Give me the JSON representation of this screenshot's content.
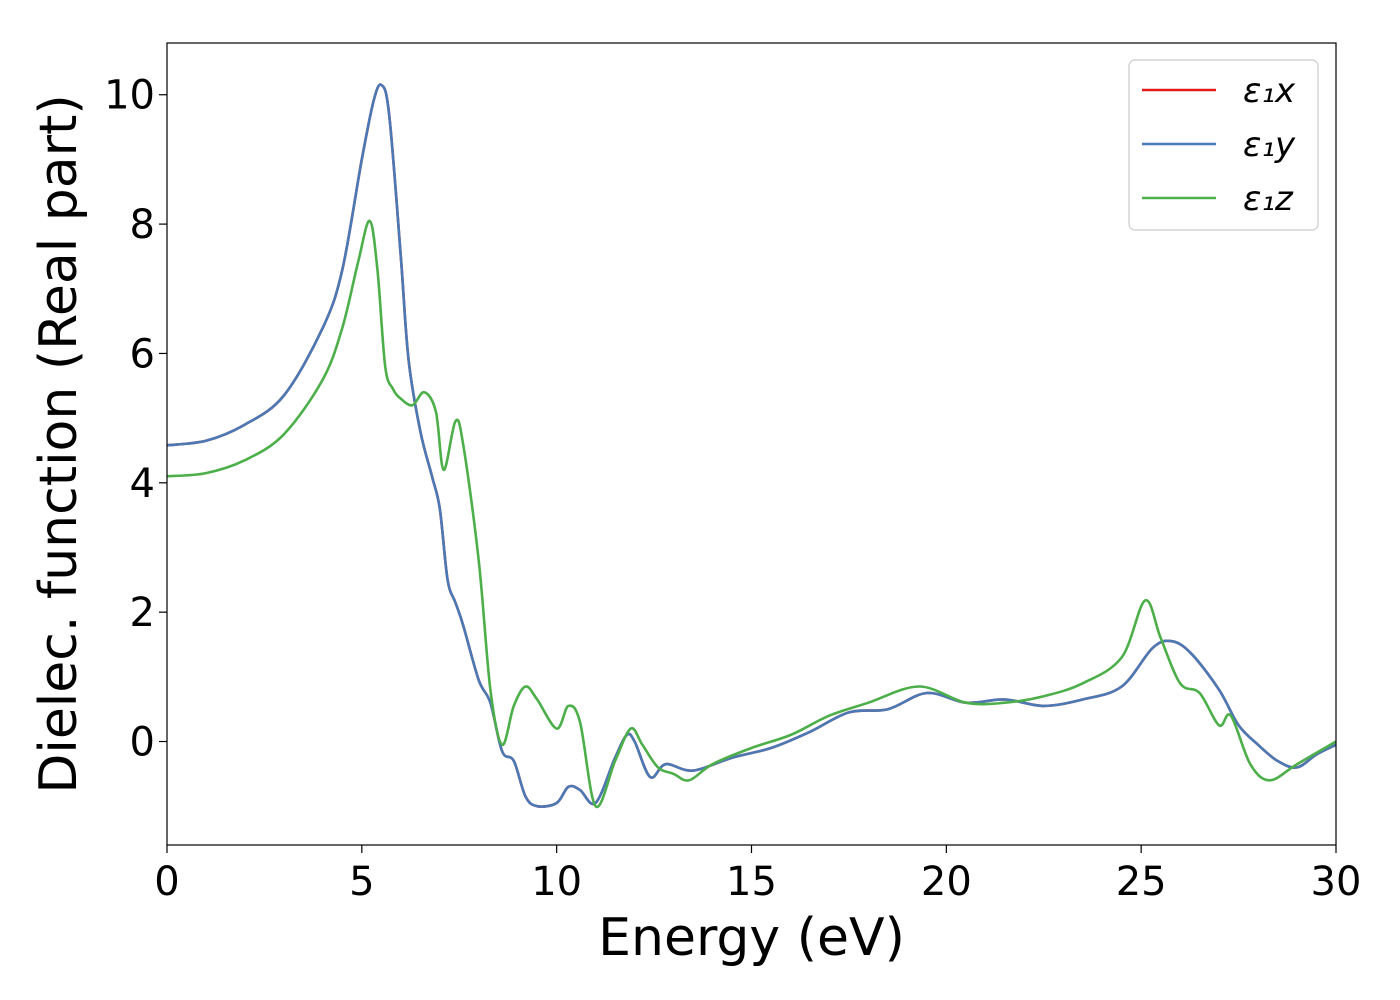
{
  "chart_data": {
    "type": "line",
    "xlabel": "Energy (eV)",
    "ylabel": "Dielec. function (Real part)",
    "xlim": [
      0,
      30
    ],
    "ylim": [
      -1.6,
      10.8
    ],
    "xticks": [
      0,
      5,
      10,
      15,
      20,
      25,
      30
    ],
    "yticks": [
      0,
      2,
      4,
      6,
      8,
      10
    ],
    "grid": false,
    "legend_position": "top-right",
    "series": [
      {
        "name": "ε₁x",
        "color": "#e41a1c",
        "x": [
          0,
          1,
          2,
          3,
          4,
          4.5,
          5,
          5.3,
          5.5,
          5.7,
          6,
          6.2,
          6.5,
          6.8,
          7,
          7.2,
          7.4,
          7.6,
          8,
          8.3,
          8.6,
          8.9,
          9.2,
          9.5,
          10,
          10.3,
          10.6,
          11,
          11.5,
          11.8,
          12,
          12.4,
          12.8,
          13.5,
          14.5,
          15.5,
          16.5,
          17.5,
          18.5,
          19.5,
          20.5,
          21.5,
          22.5,
          23.5,
          24.5,
          25.3,
          25.8,
          26.3,
          27,
          27.5,
          28,
          28.5,
          29,
          29.5,
          30
        ],
        "values": [
          4.58,
          4.65,
          4.9,
          5.35,
          6.4,
          7.3,
          9.0,
          9.9,
          10.15,
          9.7,
          7.5,
          5.9,
          4.8,
          4.1,
          3.6,
          2.5,
          2.15,
          1.8,
          0.95,
          0.6,
          -0.15,
          -0.3,
          -0.85,
          -1.0,
          -0.95,
          -0.7,
          -0.75,
          -0.95,
          -0.25,
          0.1,
          0.0,
          -0.55,
          -0.35,
          -0.45,
          -0.25,
          -0.1,
          0.15,
          0.45,
          0.5,
          0.75,
          0.6,
          0.65,
          0.55,
          0.65,
          0.85,
          1.45,
          1.55,
          1.35,
          0.8,
          0.25,
          -0.05,
          -0.3,
          -0.4,
          -0.2,
          -0.05
        ]
      },
      {
        "name": "ε₁y",
        "color": "#4a7ab6",
        "x": [
          0,
          1,
          2,
          3,
          4,
          4.5,
          5,
          5.3,
          5.5,
          5.7,
          6,
          6.2,
          6.5,
          6.8,
          7,
          7.2,
          7.4,
          7.6,
          8,
          8.3,
          8.6,
          8.9,
          9.2,
          9.5,
          10,
          10.3,
          10.6,
          11,
          11.5,
          11.8,
          12,
          12.4,
          12.8,
          13.5,
          14.5,
          15.5,
          16.5,
          17.5,
          18.5,
          19.5,
          20.5,
          21.5,
          22.5,
          23.5,
          24.5,
          25.3,
          25.8,
          26.3,
          27,
          27.5,
          28,
          28.5,
          29,
          29.5,
          30
        ],
        "values": [
          4.58,
          4.65,
          4.9,
          5.35,
          6.4,
          7.3,
          9.0,
          9.9,
          10.15,
          9.7,
          7.5,
          5.9,
          4.8,
          4.1,
          3.6,
          2.5,
          2.15,
          1.8,
          0.95,
          0.6,
          -0.15,
          -0.3,
          -0.85,
          -1.0,
          -0.95,
          -0.7,
          -0.75,
          -0.95,
          -0.25,
          0.1,
          0.0,
          -0.55,
          -0.35,
          -0.45,
          -0.25,
          -0.1,
          0.15,
          0.45,
          0.5,
          0.75,
          0.6,
          0.65,
          0.55,
          0.65,
          0.85,
          1.45,
          1.55,
          1.35,
          0.8,
          0.25,
          -0.05,
          -0.3,
          -0.4,
          -0.2,
          -0.05
        ]
      },
      {
        "name": "ε₁z",
        "color": "#4daf4a",
        "x": [
          0,
          1,
          2,
          3,
          4,
          4.5,
          4.9,
          5.2,
          5.4,
          5.6,
          5.8,
          6.0,
          6.3,
          6.6,
          6.9,
          7.1,
          7.4,
          7.6,
          8.0,
          8.3,
          8.6,
          8.9,
          9.2,
          9.5,
          10.0,
          10.3,
          10.6,
          11.0,
          11.5,
          11.9,
          12.2,
          12.6,
          13.0,
          13.4,
          14.0,
          15.0,
          16.0,
          17.0,
          18.0,
          19.3,
          20.5,
          21.5,
          22.5,
          23.5,
          24.5,
          25.1,
          25.5,
          26.0,
          26.5,
          27.0,
          27.3,
          27.8,
          28.3,
          29.0,
          30.0
        ],
        "values": [
          4.1,
          4.15,
          4.35,
          4.75,
          5.6,
          6.4,
          7.4,
          8.05,
          7.3,
          5.8,
          5.45,
          5.3,
          5.2,
          5.4,
          5.1,
          4.2,
          4.95,
          4.6,
          2.8,
          0.8,
          -0.05,
          0.55,
          0.85,
          0.65,
          0.2,
          0.55,
          0.3,
          -1.0,
          -0.3,
          0.2,
          -0.05,
          -0.4,
          -0.5,
          -0.6,
          -0.35,
          -0.1,
          0.1,
          0.4,
          0.6,
          0.85,
          0.6,
          0.6,
          0.7,
          0.9,
          1.3,
          2.18,
          1.6,
          0.9,
          0.75,
          0.25,
          0.4,
          -0.35,
          -0.6,
          -0.35,
          0.0
        ]
      }
    ]
  }
}
